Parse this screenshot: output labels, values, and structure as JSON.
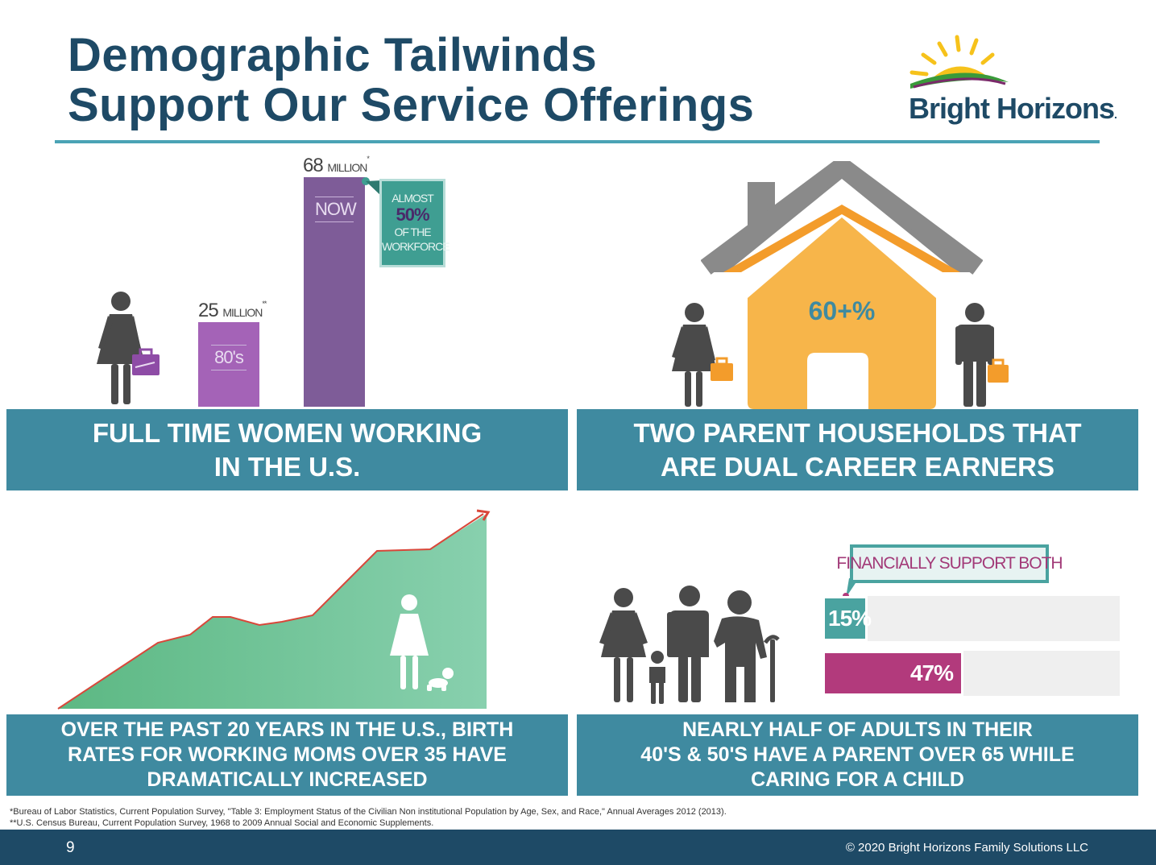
{
  "header": {
    "title_line1": "Demographic Tailwinds",
    "title_line2": "Support Our Service Offerings",
    "logo_text": "Bright Horizons",
    "logo_mark": "."
  },
  "colors": {
    "title": "#1e4a66",
    "panel": "#3f8aa0",
    "purple": "#7e5c98",
    "orange": "#f7b54a",
    "green": "#7fcfa8",
    "teal": "#3f9e92",
    "magenta": "#b23a7c"
  },
  "women_working": {
    "bar_80s": {
      "value": "25",
      "unit": "MILLION",
      "mark": "**",
      "era": "80's",
      "millions": 25
    },
    "bar_now": {
      "value": "68",
      "unit": "MILLION",
      "mark": "*",
      "era": "NOW",
      "millions": 68
    },
    "callout": {
      "line1": "ALMOST",
      "line2": "50%",
      "line3": "OF THE",
      "line4": "WORKFORCE"
    },
    "caption_line1": "FULL TIME WOMEN WORKING",
    "caption_line2": "IN THE U.S."
  },
  "dual_career": {
    "percent": "60+%",
    "caption_line1": "TWO PARENT HOUSEHOLDS THAT",
    "caption_line2": "ARE DUAL CAREER EARNERS"
  },
  "birth_rates": {
    "caption_line1": "OVER THE PAST 20 YEARS IN THE U.S., BIRTH",
    "caption_line2": "RATES FOR WORKING MOMS OVER 35 HAVE",
    "caption_line3": "DRAMATICALLY INCREASED"
  },
  "sandwich": {
    "callout": "FINANCIALLY SUPPORT BOTH",
    "bar1": {
      "label": "15%",
      "value": 15
    },
    "bar2": {
      "label": "47%",
      "value": 47
    },
    "caption_line1": "NEARLY HALF OF ADULTS IN THEIR",
    "caption_line2": "40'S & 50'S HAVE A PARENT OVER 65 WHILE",
    "caption_line3": "CARING FOR A CHILD"
  },
  "footnotes": {
    "line1": "*Bureau of Labor Statistics, Current Population Survey, \"Table 3: Employment Status of the Civilian Non institutional Population by Age, Sex, and Race,\" Annual Averages 2012 (2013).",
    "line2": "**U.S. Census Bureau, Current Population Survey, 1968 to 2009 Annual Social and Economic Supplements."
  },
  "footer": {
    "page_number": "9",
    "copyright": "© 2020 Bright Horizons Family Solutions LLC"
  }
}
